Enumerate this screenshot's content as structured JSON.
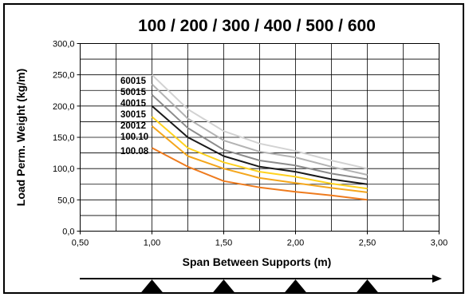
{
  "chart_data": {
    "type": "line",
    "title": "100 / 200 / 300 / 400 / 500 / 600",
    "xlabel": "Span Between Supports (m)",
    "ylabel": "Load Perm. Weight (kg/m)",
    "xlim": [
      0.5,
      3.0
    ],
    "ylim": [
      0,
      300
    ],
    "x_ticks": [
      "0,50",
      "1,00",
      "1,50",
      "2,00",
      "2,50",
      "3,00"
    ],
    "y_ticks": [
      "0,0",
      "50,0",
      "100,0",
      "150,0",
      "200,0",
      "250,0",
      "300,0"
    ],
    "grid": true,
    "x": [
      1.0,
      1.25,
      1.5,
      1.75,
      2.0,
      2.25,
      2.5
    ],
    "series": [
      {
        "name": "60015",
        "color": "#d2d2d2",
        "values": [
          250,
          195,
          160,
          140,
          128,
          113,
          100
        ]
      },
      {
        "name": "50015",
        "color": "#b3b3b3",
        "values": [
          235,
          180,
          145,
          127,
          118,
          103,
          90
        ]
      },
      {
        "name": "40015",
        "color": "#8c8c8c",
        "values": [
          218,
          165,
          130,
          113,
          105,
          92,
          83
        ]
      },
      {
        "name": "30015",
        "color": "#1a1a1a",
        "values": [
          200,
          150,
          120,
          103,
          95,
          83,
          75
        ]
      },
      {
        "name": "20012",
        "color": "#ffd21f",
        "values": [
          183,
          133,
          110,
          95,
          87,
          76,
          68
        ]
      },
      {
        "name": "100.10",
        "color": "#f4a61c",
        "values": [
          168,
          120,
          100,
          85,
          77,
          69,
          62
        ]
      },
      {
        "name": "100.08",
        "color": "#ee7b1e",
        "values": [
          133,
          103,
          80,
          70,
          63,
          57,
          50
        ]
      }
    ],
    "supports_x": [
      1.0,
      1.5,
      2.0,
      2.5
    ]
  }
}
